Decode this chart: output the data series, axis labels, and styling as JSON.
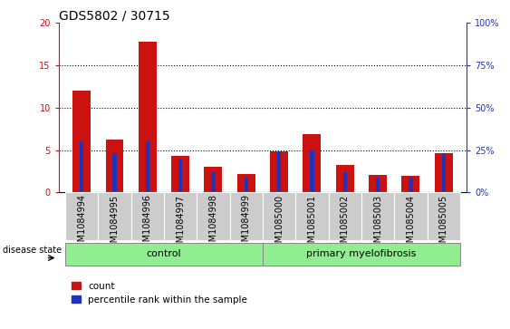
{
  "title": "GDS5802 / 30715",
  "samples": [
    "GSM1084994",
    "GSM1084995",
    "GSM1084996",
    "GSM1084997",
    "GSM1084998",
    "GSM1084999",
    "GSM1085000",
    "GSM1085001",
    "GSM1085002",
    "GSM1085003",
    "GSM1085004",
    "GSM1085005"
  ],
  "count_values": [
    12,
    6.2,
    17.8,
    4.3,
    3.0,
    2.2,
    4.8,
    6.9,
    3.2,
    2.1,
    2.0,
    4.6
  ],
  "blue_pct_right": [
    30,
    23,
    30,
    20,
    12,
    9,
    24,
    25,
    12,
    9,
    9,
    23
  ],
  "n_control": 6,
  "n_primary": 6,
  "ylim_left": [
    0,
    20
  ],
  "ylim_right": [
    0,
    100
  ],
  "yticks_left": [
    0,
    5,
    10,
    15,
    20
  ],
  "yticks_right": [
    0,
    25,
    50,
    75,
    100
  ],
  "ytick_labels_left": [
    "0",
    "5",
    "10",
    "15",
    "20"
  ],
  "ytick_labels_right": [
    "0%",
    "25%",
    "50%",
    "75%",
    "100%"
  ],
  "bar_color_count": "#cc1111",
  "bar_color_percentile": "#2233bb",
  "bar_width": 0.55,
  "blue_bar_width": 0.12,
  "control_color": "#90ee90",
  "primary_color": "#90ee90",
  "grid_color": "#000000",
  "legend_count_label": "count",
  "legend_percentile_label": "percentile rank within the sample",
  "disease_state_label": "disease state",
  "control_label": "control",
  "primary_label": "primary myelofibrosis",
  "title_fontsize": 10,
  "tick_fontsize": 7,
  "label_fontsize": 8,
  "xtick_bg_color": "#cccccc",
  "plot_bg": "#ffffff",
  "spine_color": "#000000"
}
